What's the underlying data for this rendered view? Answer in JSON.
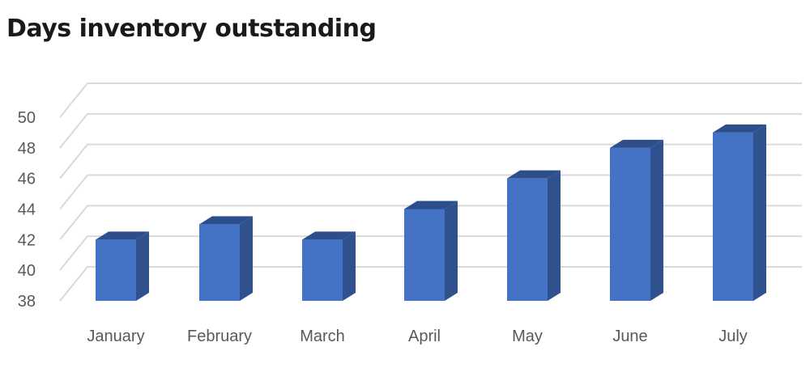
{
  "chart_data": {
    "type": "bar",
    "title": "Days inventory outstanding",
    "categories": [
      "January",
      "February",
      "March",
      "April",
      "May",
      "June",
      "July"
    ],
    "values": [
      42,
      43,
      42,
      44,
      46,
      48,
      49
    ],
    "yticks": [
      "38",
      "40",
      "42",
      "44",
      "46",
      "48",
      "50"
    ],
    "ylim": [
      38,
      50
    ],
    "xlabel": "",
    "ylabel": "",
    "grid": true,
    "legend": "none",
    "style": "3d-column",
    "colors": {
      "bar_front": "#4472c4",
      "bar_side": "#2f528f",
      "bar_top": "#2c4f8c",
      "grid": "#d9d9d9",
      "text": "#595959"
    }
  }
}
